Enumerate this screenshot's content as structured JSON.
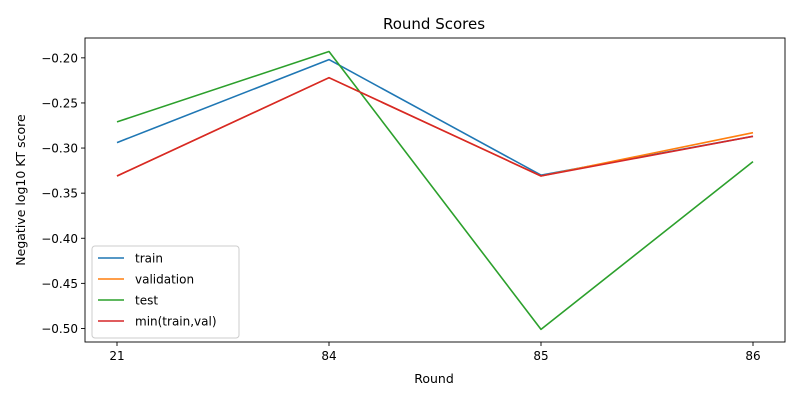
{
  "chart_data": {
    "type": "line",
    "title": "Round Scores",
    "xlabel": "Round",
    "ylabel": "Negative log10 KT score",
    "categories": [
      "21",
      "84",
      "85",
      "86"
    ],
    "ylim": [
      -0.515,
      -0.178
    ],
    "yticks": [
      -0.5,
      -0.45,
      -0.4,
      -0.35,
      -0.3,
      -0.25,
      -0.2
    ],
    "ytick_labels": [
      "−0.50",
      "−0.45",
      "−0.40",
      "−0.35",
      "−0.30",
      "−0.25",
      "−0.20"
    ],
    "grid": false,
    "legend_position": "lower-left",
    "series": [
      {
        "name": "train",
        "color": "#1f77b4",
        "values": [
          -0.294,
          -0.202,
          -0.33,
          -0.287
        ]
      },
      {
        "name": "validation",
        "color": "#ff7f0e",
        "values": [
          -0.331,
          -0.222,
          -0.331,
          -0.283
        ]
      },
      {
        "name": "test",
        "color": "#2ca02c",
        "values": [
          -0.271,
          -0.193,
          -0.501,
          -0.315
        ]
      },
      {
        "name": "min(train,val)",
        "color": "#d62728",
        "values": [
          -0.331,
          -0.222,
          -0.331,
          -0.287
        ]
      }
    ]
  }
}
